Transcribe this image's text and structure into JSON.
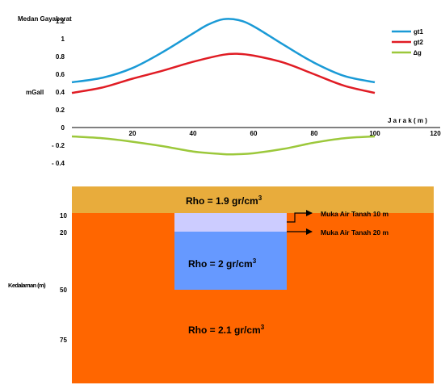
{
  "chart_data": {
    "type": "line",
    "ylabel_title": "Medan Gayaberat",
    "ylabel_unit": "mGall",
    "xlabel": "J a r a k  ( m )",
    "x_ticks": [
      "20",
      "40",
      "60",
      "80",
      "100",
      "120"
    ],
    "y_ticks": [
      "1.2",
      "1",
      "0.8",
      "0.6",
      "0.4",
      "0.2",
      "0",
      "- 0.2",
      "- 0.4"
    ],
    "xlim": [
      0,
      120
    ],
    "ylim": [
      -0.45,
      1.3
    ],
    "legend_position": "top-right",
    "series": [
      {
        "name": "gt1",
        "color": "#1a9ad6",
        "x": [
          0,
          10,
          20,
          30,
          40,
          45,
          50,
          55,
          60,
          70,
          80,
          90,
          100
        ],
        "y": [
          0.51,
          0.56,
          0.67,
          0.85,
          1.06,
          1.16,
          1.22,
          1.21,
          1.14,
          0.93,
          0.73,
          0.58,
          0.51
        ]
      },
      {
        "name": "gt2",
        "color": "#e01c24",
        "x": [
          0,
          10,
          20,
          30,
          40,
          50,
          55,
          60,
          70,
          80,
          90,
          100
        ],
        "y": [
          0.39,
          0.45,
          0.55,
          0.64,
          0.74,
          0.82,
          0.83,
          0.81,
          0.73,
          0.6,
          0.47,
          0.39
        ]
      },
      {
        "name": "∆g",
        "color": "#9cc83b",
        "x": [
          0,
          10,
          20,
          30,
          40,
          50,
          55,
          60,
          70,
          80,
          90,
          100
        ],
        "y": [
          -0.1,
          -0.12,
          -0.16,
          -0.21,
          -0.27,
          -0.3,
          -0.3,
          -0.29,
          -0.24,
          -0.17,
          -0.12,
          -0.1
        ]
      }
    ]
  },
  "cross_section": {
    "depth_label": "Kedalaman (m)",
    "depth_ticks": [
      "10",
      "20",
      "50",
      "75"
    ],
    "top_layer": {
      "label": "Rho = 1.9 gr/cm",
      "sup": "3",
      "color": "#e8ac3c"
    },
    "bottom_layer": {
      "label": "Rho = 2.1 gr/cm",
      "sup": "3",
      "color": "#ff6600"
    },
    "body": {
      "label": "Rho = 2 gr/cm",
      "sup": "3",
      "color": "#6699ff",
      "cap_color": "#ccccff"
    },
    "annotations": [
      "Muka Air Tanah 10 m",
      "Muka Air Tanah 20 m"
    ]
  }
}
